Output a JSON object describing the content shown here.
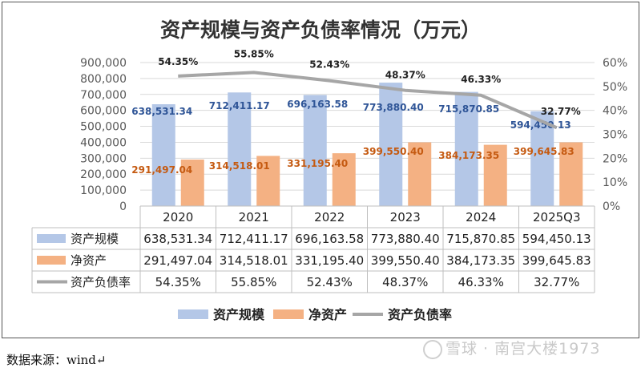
{
  "source_note": "数据来源：wind↵",
  "watermark": "雪球 · 南宫大楼1973",
  "chart_data": {
    "type": "bar",
    "title": "资产规模与资产负债率情况（万元）",
    "categories": [
      "2020",
      "2021",
      "2022",
      "2023",
      "2024",
      "2025Q3"
    ],
    "series": [
      {
        "name": "资产规模",
        "kind": "bar",
        "axis": "left",
        "color": "#b4c7e7",
        "label_color": "#2f5597",
        "values": [
          638531.34,
          712411.17,
          696163.58,
          773880.4,
          715870.85,
          594450.13
        ],
        "labels": [
          "638,531.34",
          "712,411.17",
          "696,163.58",
          "773,880.40",
          "715,870.85",
          "594,450.13"
        ]
      },
      {
        "name": "净资产",
        "kind": "bar",
        "axis": "left",
        "color": "#f4b183",
        "label_color": "#c55a11",
        "values": [
          291497.04,
          314518.01,
          331195.4,
          399550.4,
          384173.35,
          399645.83
        ],
        "labels": [
          "291,497.04",
          "314,518.01",
          "331,195.40",
          "399,550.40",
          "384,173.35",
          "399,645.83"
        ]
      },
      {
        "name": "资产负债率",
        "kind": "line",
        "axis": "right",
        "color": "#a6a6a6",
        "label_color": "#222222",
        "values": [
          54.35,
          55.85,
          52.43,
          48.37,
          46.33,
          32.77
        ],
        "labels": [
          "54.35%",
          "55.85%",
          "52.43%",
          "48.37%",
          "46.33%",
          "32.77%"
        ]
      }
    ],
    "y_left": {
      "min": 0,
      "max": 900000,
      "ticks": [
        "0",
        "100,000",
        "200,000",
        "300,000",
        "400,000",
        "500,000",
        "600,000",
        "700,000",
        "800,000",
        "900,000"
      ]
    },
    "y_right": {
      "min": 0,
      "max": 60,
      "ticks": [
        "0%",
        "10%",
        "20%",
        "30%",
        "40%",
        "50%",
        "60%"
      ]
    },
    "grid": true,
    "legend_position": "bottom",
    "table": {
      "rows": [
        {
          "name": "资产规模",
          "cells": [
            "638,531.34",
            "712,411.17",
            "696,163.58",
            "773,880.40",
            "715,870.85",
            "594,450.13"
          ]
        },
        {
          "name": "净资产",
          "cells": [
            "291,497.04",
            "314,518.01",
            "331,195.40",
            "399,550.40",
            "384,173.35",
            "399,645.83"
          ]
        },
        {
          "name": "资产负债率",
          "cells": [
            "54.35%",
            "55.85%",
            "52.43%",
            "48.37%",
            "46.33%",
            "32.77%"
          ]
        }
      ]
    }
  }
}
